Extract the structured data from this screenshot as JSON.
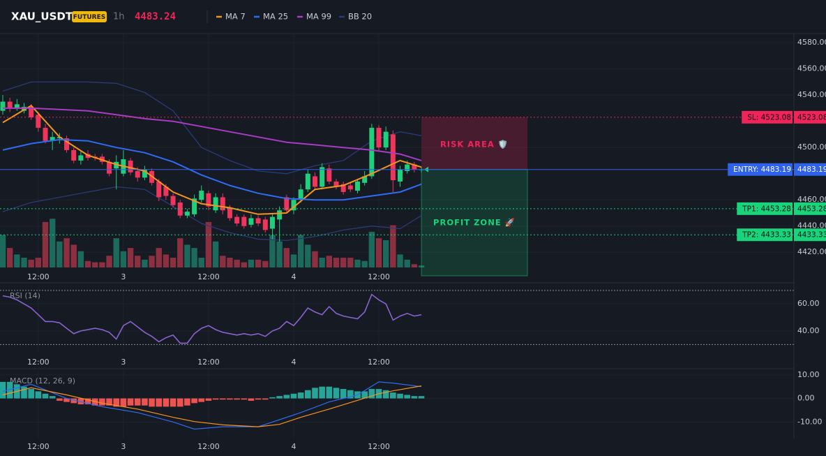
{
  "chart_data": [
    {
      "type": "candlestick",
      "title": "XAU_USDT",
      "badge": "FUTURES",
      "interval": "1h",
      "last_price": 4483.24,
      "categories": [
        null,
        null,
        null,
        null,
        null,
        "12:00",
        null,
        null,
        null,
        null,
        null,
        null,
        null,
        null,
        null,
        null,
        null,
        "3",
        null,
        null,
        null,
        null,
        null,
        null,
        null,
        null,
        null,
        null,
        null,
        "12:00",
        null,
        null,
        null,
        null,
        null,
        null,
        null,
        null,
        null,
        null,
        null,
        "4",
        null,
        null,
        null,
        null,
        null,
        null,
        null,
        null,
        null,
        null,
        null,
        "12:00",
        null,
        null,
        null,
        null,
        null,
        null
      ],
      "open": [
        4528,
        4535,
        4530,
        4528,
        4531,
        4525,
        4515,
        4505,
        4507,
        4507,
        4498,
        4490,
        4495,
        4493,
        4493,
        4489,
        4484,
        4480,
        4490,
        4482,
        4477,
        4482,
        4474,
        4470,
        4463,
        4458,
        4448,
        4449,
        4460,
        4465,
        4452,
        4462,
        4454,
        4447,
        4447,
        4441,
        4446,
        4445,
        4438,
        4445,
        4462,
        4452,
        4460,
        4468,
        4478,
        4470,
        4484,
        4474,
        4472,
        4471,
        4467,
        4473,
        4478,
        4515,
        4500,
        4510,
        4474,
        4482,
        4487,
        4483
      ],
      "high": [
        4540,
        4538,
        4537,
        4534,
        4533,
        4527,
        4518,
        4512,
        4511,
        4509,
        4500,
        4497,
        4498,
        4495,
        4495,
        4491,
        4494,
        4498,
        4492,
        4485,
        4486,
        4484,
        4476,
        4472,
        4465,
        4460,
        4453,
        4464,
        4471,
        4467,
        4465,
        4465,
        4456,
        4449,
        4449,
        4449,
        4448,
        4447,
        4450,
        4455,
        4464,
        4462,
        4472,
        4483,
        4481,
        4488,
        4487,
        4476,
        4474,
        4473,
        4476,
        4482,
        4518,
        4517,
        4516,
        4513,
        4486,
        4490,
        4489,
        4485
      ],
      "low": [
        4525,
        4527,
        4528,
        4526,
        4521,
        4512,
        4503,
        4498,
        4503,
        4496,
        4488,
        4487,
        4490,
        4490,
        4487,
        4478,
        4468,
        4478,
        4479,
        4474,
        4475,
        4471,
        4459,
        4460,
        4454,
        4446,
        4446,
        4447,
        4458,
        4452,
        4450,
        4449,
        4444,
        4440,
        4438,
        4439,
        4440,
        4435,
        4430,
        4428,
        4450,
        4449,
        4458,
        4466,
        4468,
        4468,
        4472,
        4468,
        4464,
        4466,
        4465,
        4471,
        4476,
        4497,
        4498,
        4466,
        4470,
        4480,
        4481,
        4481
      ],
      "close": [
        4535,
        4530,
        4533,
        4531,
        4523,
        4515,
        4505,
        4508,
        4508,
        4498,
        4490,
        4494,
        4492,
        4492,
        4489,
        4480,
        4489,
        4491,
        4481,
        4477,
        4483,
        4473,
        4462,
        4463,
        4456,
        4448,
        4451,
        4461,
        4467,
        4455,
        4462,
        4452,
        4446,
        4442,
        4440,
        4446,
        4442,
        4437,
        4447,
        4452,
        4452,
        4460,
        4468,
        4480,
        4470,
        4485,
        4474,
        4470,
        4466,
        4468,
        4474,
        4478,
        4515,
        4500,
        4512,
        4475,
        4483,
        4487,
        4483,
        4483.24
      ],
      "up_color": "#1fcf7c",
      "down_color": "#f0355c",
      "volume": [
        50,
        30,
        20,
        15,
        12,
        15,
        70,
        75,
        40,
        45,
        35,
        25,
        10,
        8,
        8,
        18,
        45,
        25,
        30,
        18,
        12,
        18,
        30,
        20,
        15,
        45,
        35,
        30,
        15,
        70,
        40,
        18,
        15,
        12,
        8,
        12,
        12,
        10,
        50,
        40,
        30,
        20,
        50,
        35,
        25,
        15,
        18,
        15,
        15,
        15,
        12,
        10,
        55,
        45,
        42,
        65,
        20,
        12,
        5,
        3
      ],
      "vlim": [
        0,
        100
      ],
      "volume_up_color": "#1c6a5c",
      "volume_down_color": "#8c2f40",
      "overlays": [
        {
          "name": "MA 7",
          "color": "#f7941d",
          "x": [
            0,
            4,
            8,
            12,
            16,
            20,
            24,
            28,
            32,
            36,
            40,
            44,
            48,
            52,
            56,
            59
          ],
          "values": [
            4519,
            4532,
            4508,
            4494,
            4487,
            4482,
            4466,
            4457,
            4454,
            4449,
            4450,
            4468,
            4471,
            4480,
            4490,
            4485
          ]
        },
        {
          "name": "MA 25",
          "color": "#2f6cf5",
          "x": [
            0,
            4,
            8,
            12,
            16,
            20,
            24,
            28,
            32,
            36,
            40,
            44,
            48,
            52,
            56,
            59
          ],
          "values": [
            4498,
            4503,
            4506,
            4505,
            4500,
            4496,
            4489,
            4479,
            4471,
            4465,
            4461,
            4460,
            4460,
            4463,
            4466,
            4472
          ]
        },
        {
          "name": "MA 99",
          "color": "#a93cc4",
          "x": [
            0,
            4,
            8,
            12,
            16,
            20,
            24,
            28,
            32,
            36,
            40,
            44,
            48,
            52,
            56,
            59
          ],
          "values": [
            4530,
            4530,
            4529,
            4528,
            4525,
            4522,
            4520,
            4516,
            4512,
            4508,
            4504,
            4502,
            4500,
            4498,
            4495,
            4490
          ]
        },
        {
          "name": "BB 20",
          "color": "#2c3a78",
          "x": [
            0,
            4,
            8,
            12,
            16,
            20,
            24,
            28,
            32,
            36,
            40,
            44,
            48,
            52,
            56,
            59
          ],
          "upper": [
            4543,
            4550,
            4550,
            4550,
            4549,
            4542,
            4528,
            4500,
            4490,
            4482,
            4480,
            4486,
            4490,
            4505,
            4512,
            4509
          ],
          "lower": [
            4451,
            4458,
            4462,
            4466,
            4470,
            4468,
            4455,
            4442,
            4435,
            4430,
            4429,
            4432,
            4437,
            4440,
            4438,
            4448
          ]
        }
      ],
      "levels": [
        {
          "label": "SL: 4523.08",
          "value": 4523.08,
          "color": "#f0245a",
          "style": "dotted"
        },
        {
          "label": "ENTRY: 4483.19",
          "value": 4483.19,
          "color": "#2f62e8",
          "style": "solid"
        },
        {
          "label": "TP1: 4453.28",
          "value": 4453.28,
          "color": "#19d47a",
          "style": "dotted"
        },
        {
          "label": "TP2: 4433.33",
          "value": 4433.33,
          "color": "#19d47a",
          "style": "dotted"
        }
      ],
      "zones": [
        {
          "label": "RISK AREA 🛡️",
          "color": "#f0245a"
        },
        {
          "label": "PROFIT ZONE 🚀",
          "color": "#19d47a"
        }
      ],
      "ylim": [
        4402,
        4587
      ],
      "yticks": [
        {
          "value": 4420,
          "label": "4420.00"
        },
        {
          "value": 4440,
          "label": "4440.00"
        },
        {
          "value": 4460,
          "label": "4460.00"
        },
        {
          "value": 4500,
          "label": "4500.00"
        },
        {
          "value": 4540,
          "label": "4540.00"
        },
        {
          "value": 4560,
          "label": "4560.00"
        },
        {
          "value": 4580,
          "label": "4580.00"
        }
      ],
      "grid": true
    },
    {
      "type": "line",
      "title": "RSI (14)",
      "color": "#8a63d2",
      "values": [
        66,
        65,
        63,
        60,
        57,
        52,
        47,
        47,
        46,
        42,
        38,
        40,
        41,
        42,
        41,
        39,
        34,
        44,
        47,
        43,
        39,
        36,
        32,
        35,
        37,
        31,
        31,
        38,
        42,
        44,
        41,
        39,
        38,
        37,
        38,
        37,
        38,
        36,
        40,
        42,
        47,
        44,
        50,
        57,
        54,
        52,
        58,
        53,
        51,
        50,
        49,
        54,
        67,
        63,
        60,
        48,
        51,
        53,
        51,
        52
      ],
      "levels": [
        30,
        70
      ],
      "ylim": [
        25,
        73
      ],
      "yticks": [
        {
          "value": 40,
          "label": "40.00"
        },
        {
          "value": 60,
          "label": "60.00"
        }
      ],
      "grid": true
    },
    {
      "type": "bar",
      "title": "MACD (12, 26, 9)",
      "up_color": "#26a69a",
      "down_color": "#ef5350",
      "values": [
        7,
        7,
        6,
        5,
        4,
        3,
        2,
        1,
        -1,
        -1.5,
        -2,
        -2.5,
        -2.5,
        -3,
        -3,
        -3,
        -3.5,
        -3.5,
        -3,
        -3,
        -3,
        -3.5,
        -3.5,
        -3.5,
        -3.5,
        -3.5,
        -3,
        -2,
        -1.5,
        -1,
        -0.5,
        -0.5,
        -0.5,
        -0.5,
        -0.5,
        -1,
        -0.5,
        -0.5,
        0.5,
        1,
        1.5,
        2,
        2.5,
        3.5,
        4.5,
        5,
        5,
        4.5,
        4,
        3.5,
        3,
        3,
        4,
        4,
        3.5,
        2.5,
        2,
        1.5,
        1,
        1
      ],
      "lines": [
        {
          "color": "#2f6cf5",
          "x": [
            0,
            4,
            9,
            14,
            19,
            24,
            27,
            31,
            36,
            39,
            42,
            46,
            50,
            53,
            55,
            59
          ],
          "values": [
            3,
            6,
            0,
            -3.5,
            -6,
            -10,
            -13,
            -12,
            -12,
            -9,
            -6,
            -1.5,
            1.5,
            7,
            6.5,
            5
          ]
        },
        {
          "color": "#f7941d",
          "x": [
            0,
            4,
            9,
            14,
            19,
            24,
            27,
            31,
            36,
            39,
            42,
            46,
            50,
            53,
            55,
            59
          ],
          "values": [
            1.5,
            4.5,
            1.5,
            -2,
            -4.5,
            -8,
            -9.8,
            -11.2,
            -12,
            -11,
            -8,
            -4.5,
            -0.8,
            2,
            3.2,
            5.3
          ]
        }
      ],
      "ylim": [
        -17,
        12
      ],
      "yticks": [
        {
          "value": 10,
          "label": "10.00"
        },
        {
          "value": 0,
          "label": "0.00"
        },
        {
          "value": -10,
          "label": "-10.00"
        }
      ],
      "grid": true
    }
  ]
}
